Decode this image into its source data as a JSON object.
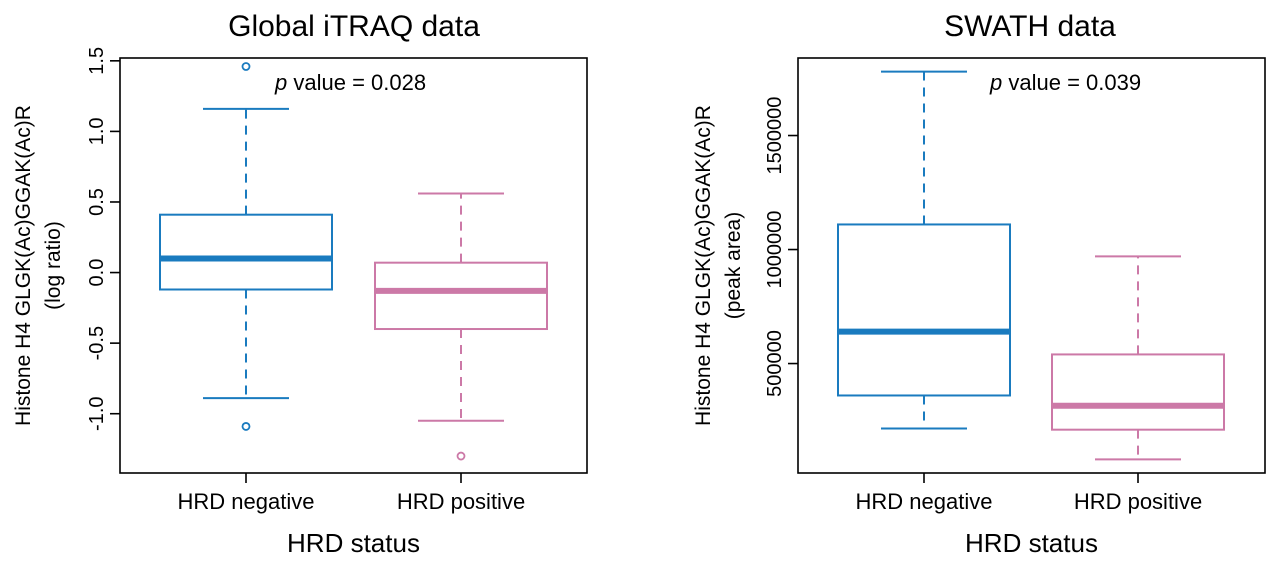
{
  "chart_data": [
    {
      "type": "box",
      "title": "Global iTRAQ data",
      "xlabel": "HRD status",
      "ylabel": "Histone H4 GLGK(Ac)GGAK(Ac)R",
      "ylabel2": "(log ratio)",
      "annotation": {
        "italic": "p",
        "text": " value = 0.028"
      },
      "ylim": [
        -1.42,
        1.52
      ],
      "yticks": [
        -1.0,
        -0.5,
        0.0,
        0.5,
        1.0,
        1.5
      ],
      "ytick_labels": [
        "-1.0",
        "-0.5",
        "0.0",
        "0.5",
        "1.0",
        "1.5"
      ],
      "categories": [
        "HRD negative",
        "HRD positive"
      ],
      "boxes": [
        {
          "name": "HRD negative",
          "color": "#1a7bbf",
          "whisker_low": -0.89,
          "q1": -0.12,
          "median": 0.1,
          "q3": 0.41,
          "whisker_high": 1.16,
          "outliers": [
            1.46,
            -1.09
          ]
        },
        {
          "name": "HRD positive",
          "color": "#cc79a7",
          "whisker_low": -1.05,
          "q1": -0.4,
          "median": -0.13,
          "q3": 0.07,
          "whisker_high": 0.56,
          "outliers": [
            -1.3
          ]
        }
      ]
    },
    {
      "type": "box",
      "title": "SWATH data",
      "xlabel": "HRD status",
      "ylabel": "Histone H4 GLGK(Ac)GGAK(Ac)R",
      "ylabel2": "(peak area)",
      "annotation": {
        "italic": "p",
        "text": " value = 0.039"
      },
      "ylim": [
        20000,
        1840000
      ],
      "yticks": [
        500000,
        1000000,
        1500000
      ],
      "ytick_labels": [
        "500000",
        "1000000",
        "1500000"
      ],
      "categories": [
        "HRD negative",
        "HRD positive"
      ],
      "boxes": [
        {
          "name": "HRD negative",
          "color": "#1a7bbf",
          "whisker_low": 215000,
          "q1": 360000,
          "median": 640000,
          "q3": 1110000,
          "whisker_high": 1780000,
          "outliers": []
        },
        {
          "name": "HRD positive",
          "color": "#cc79a7",
          "whisker_low": 80000,
          "q1": 210000,
          "median": 315000,
          "q3": 540000,
          "whisker_high": 970000,
          "outliers": []
        }
      ]
    }
  ]
}
